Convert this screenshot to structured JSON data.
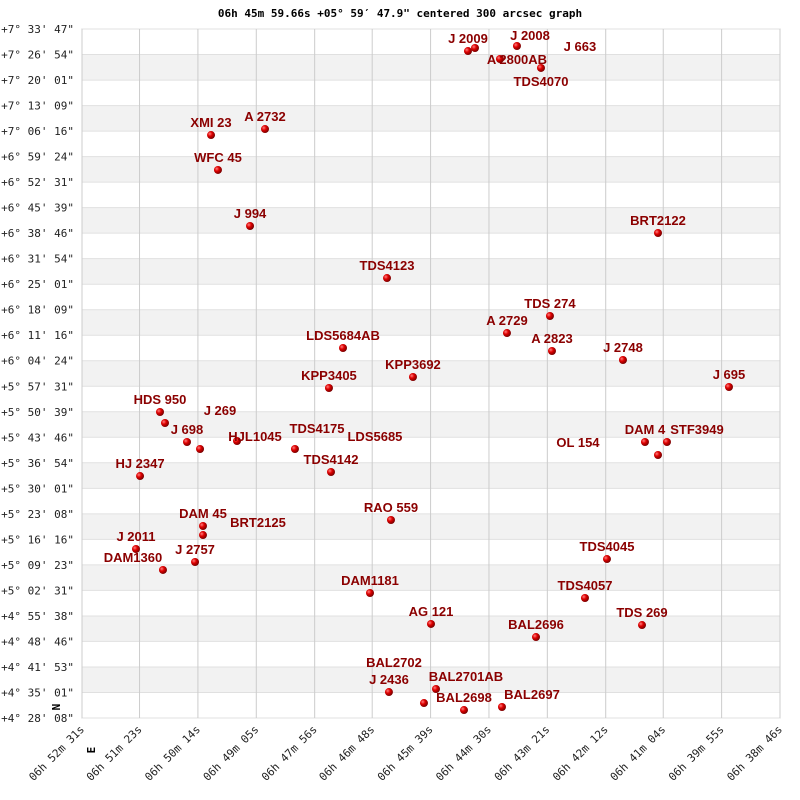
{
  "chart_data": {
    "type": "scatter",
    "title": "06h 45m 59.66s +05° 59′ 47.9\" centered 300 arcsec graph",
    "xlabel": "",
    "ylabel": "",
    "x_axis": "RA",
    "y_axis": "Dec",
    "xlim": [
      "06h 52m 31s",
      "06h 38m 46s"
    ],
    "ylim": [
      "+4° 28' 08\"",
      "+7° 33' 47\""
    ],
    "x_reversed": true,
    "grid": true,
    "compass": {
      "north": "N",
      "east": "E"
    },
    "x_ticks": [
      "06h 52m 31s",
      "06h 51m 23s",
      "06h 50m 14s",
      "06h 49m 05s",
      "06h 47m 56s",
      "06h 46m 48s",
      "06h 45m 39s",
      "06h 44m 30s",
      "06h 43m 21s",
      "06h 42m 12s",
      "06h 41m 04s",
      "06h 39m 55s",
      "06h 38m 46s"
    ],
    "y_ticks": [
      "+7° 33' 47\"",
      "+7° 26' 54\"",
      "+7° 20' 01\"",
      "+7° 13' 09\"",
      "+7° 06' 16\"",
      "+6° 59' 24\"",
      "+6° 52' 31\"",
      "+6° 45' 39\"",
      "+6° 38' 46\"",
      "+6° 31' 54\"",
      "+6° 25' 01\"",
      "+6° 18' 09\"",
      "+6° 11' 16\"",
      "+6° 04' 24\"",
      "+5° 57' 31\"",
      "+5° 50' 39\"",
      "+5° 43' 46\"",
      "+5° 36' 54\"",
      "+5° 30' 01\"",
      "+5° 23' 08\"",
      "+5° 16' 16\"",
      "+5° 09' 23\"",
      "+5° 02' 31\"",
      "+4° 55' 38\"",
      "+4° 48' 46\"",
      "+4° 41' 53\"",
      "+4° 35' 01\"",
      "+4° 28' 08\""
    ],
    "colors": {
      "point": "#dd0000",
      "label": "#8b0000",
      "stripe": "#f2f2f2",
      "grid": "#cccccc"
    },
    "points": [
      {
        "name": "J 2009",
        "ra": "06h 44m 54.8s",
        "dec": "+7° 27' 51\""
      },
      {
        "name": "J 2008",
        "ra": "06h 44m 46.5s",
        "dec": "+7° 28' 40\""
      },
      {
        "name": "J  663",
        "ra": "06h 44m 17.0s",
        "dec": "+7° 25' 42\""
      },
      {
        "name": "A 2800AB",
        "ra": "06h 43m 56.9s",
        "dec": "+7° 29' 12\""
      },
      {
        "name": "TDS4070",
        "ra": "06h 43m 28.5s",
        "dec": "+7° 23' 17\""
      },
      {
        "name": "A 2732",
        "ra": "06h 48m 54.7s",
        "dec": "+7° 06' 50\""
      },
      {
        "name": "XMI  23",
        "ra": "06h 49m 58.5s",
        "dec": "+7° 05' 13\""
      },
      {
        "name": "WFC  45",
        "ra": "06h 49m 50.3s",
        "dec": "+6° 55' 48\""
      },
      {
        "name": "J  994",
        "ra": "06h 49m 12.4s",
        "dec": "+6° 40' 42\""
      },
      {
        "name": "BRT2122",
        "ra": "06h 41m 10.2s",
        "dec": "+6° 38' 49\""
      },
      {
        "name": "TDS4123",
        "ra": "06h 46m 30.5s",
        "dec": "+6° 26' 41\""
      },
      {
        "name": "TDS 274",
        "ra": "06h 43m 17.9s",
        "dec": "+6° 16' 27\""
      },
      {
        "name": "A  2729",
        "ra": "06h 44m 08.7s",
        "dec": "+6° 11' 52\""
      },
      {
        "name": "LDS5684AB",
        "ra": "06h 47m 22.5s",
        "dec": "+6° 07' 50\""
      },
      {
        "name": "A  2823",
        "ra": "06h 43m 15.5s",
        "dec": "+6° 07' 01\""
      },
      {
        "name": "J  2748",
        "ra": "06h 41m 51.6s",
        "dec": "+6° 04' 36\""
      },
      {
        "name": "KPP3692",
        "ra": "06h 45m 59.8s",
        "dec": "+6° 00' 01\""
      },
      {
        "name": "J  695",
        "ra": "06h 39m 46.3s",
        "dec": "+5° 57' 19\""
      },
      {
        "name": "KPP3405",
        "ra": "06h 47m 39.1s",
        "dec": "+5° 57' 03\""
      },
      {
        "name": "HDS 950",
        "ra": "06h 50m 58.8s",
        "dec": "+5° 50' 35\""
      },
      {
        "name": "J  269",
        "ra": "06h 50m 52.9s",
        "dec": "+5° 47' 37\""
      },
      {
        "name": "J  698",
        "ra": "06h 50m 26.9s",
        "dec": "+5° 42' 30\""
      },
      {
        "name": "HJL1045",
        "ra": "06h 50m 11.5s",
        "dec": "+5° 40' 37\""
      },
      {
        "name": "TDS4175",
        "ra": "06h 49m 27.8s",
        "dec": "+5° 42' 46\""
      },
      {
        "name": "LDS5685",
        "ra": "06h 48m 19.3s",
        "dec": "+5° 40' 37\""
      },
      {
        "name": "DAM  4",
        "ra": "06h 41m 25.6s",
        "dec": "+5° 42' 30\""
      },
      {
        "name": "STF3949",
        "ra": "06h 40m 59.6s",
        "dec": "+5° 42' 30\""
      },
      {
        "name": "OL  154",
        "ra": "06h 41m 10.2s",
        "dec": "+5° 39' 00\""
      },
      {
        "name": "TDS4142",
        "ra": "06h 47m 36.7s",
        "dec": "+5° 34' 25\""
      },
      {
        "name": "HJ 2347",
        "ra": "06h 51m 22.4s",
        "dec": "+5° 33' 20\""
      },
      {
        "name": "RAO 559",
        "ra": "06h 46m 25.8s",
        "dec": "+5° 21' 29\""
      },
      {
        "name": "DAM  45",
        "ra": "06h 50m 08.0s",
        "dec": "+5° 19' 52\""
      },
      {
        "name": "BRT2125",
        "ra": "06h 50m 08.0s",
        "dec": "+5° 17' 26\""
      },
      {
        "name": "J  2011",
        "ra": "06h 51m 27.2s",
        "dec": "+5° 13' 40\""
      },
      {
        "name": "J  2757",
        "ra": "06h 50m 17.4s",
        "dec": "+5° 10' 10\""
      },
      {
        "name": "DAM1360",
        "ra": "06h 50m 55.3s",
        "dec": "+5° 08' 01\""
      },
      {
        "name": "TDS4045",
        "ra": "06h 42m 10.5s",
        "dec": "+5° 10' 58\""
      },
      {
        "name": "DAM1181",
        "ra": "06h 46m 50.6s",
        "dec": "+5° 01' 49\""
      },
      {
        "name": "TDS4057",
        "ra": "06h 42m 36.5s",
        "dec": "+5° 00' 28\""
      },
      {
        "name": "AG  121",
        "ra": "06h 45m 38.5s",
        "dec": "+4° 53' 28\""
      },
      {
        "name": "TDS 269",
        "ra": "06h 41m 29.1s",
        "dec": "+4° 53' 11\""
      },
      {
        "name": "BAL2696",
        "ra": "06h 43m 34.4s",
        "dec": "+4° 49' 57\""
      },
      {
        "name": "J  2436",
        "ra": "06h 46m 28.2s",
        "dec": "+4° 35' 08\""
      },
      {
        "name": "BAL2701AB",
        "ra": "06h 45m 32.6s",
        "dec": "+4° 35' 57\""
      },
      {
        "name": "BAL2702",
        "ra": "06h 45m 46.8s",
        "dec": "+4° 32' 10\""
      },
      {
        "name": "BAL2698",
        "ra": "06h 44m 59.5s",
        "dec": "+4° 30' 17\""
      },
      {
        "name": "BAL2697",
        "ra": "06h 44m 14.6s",
        "dec": "+4° 31' 06\""
      }
    ]
  }
}
